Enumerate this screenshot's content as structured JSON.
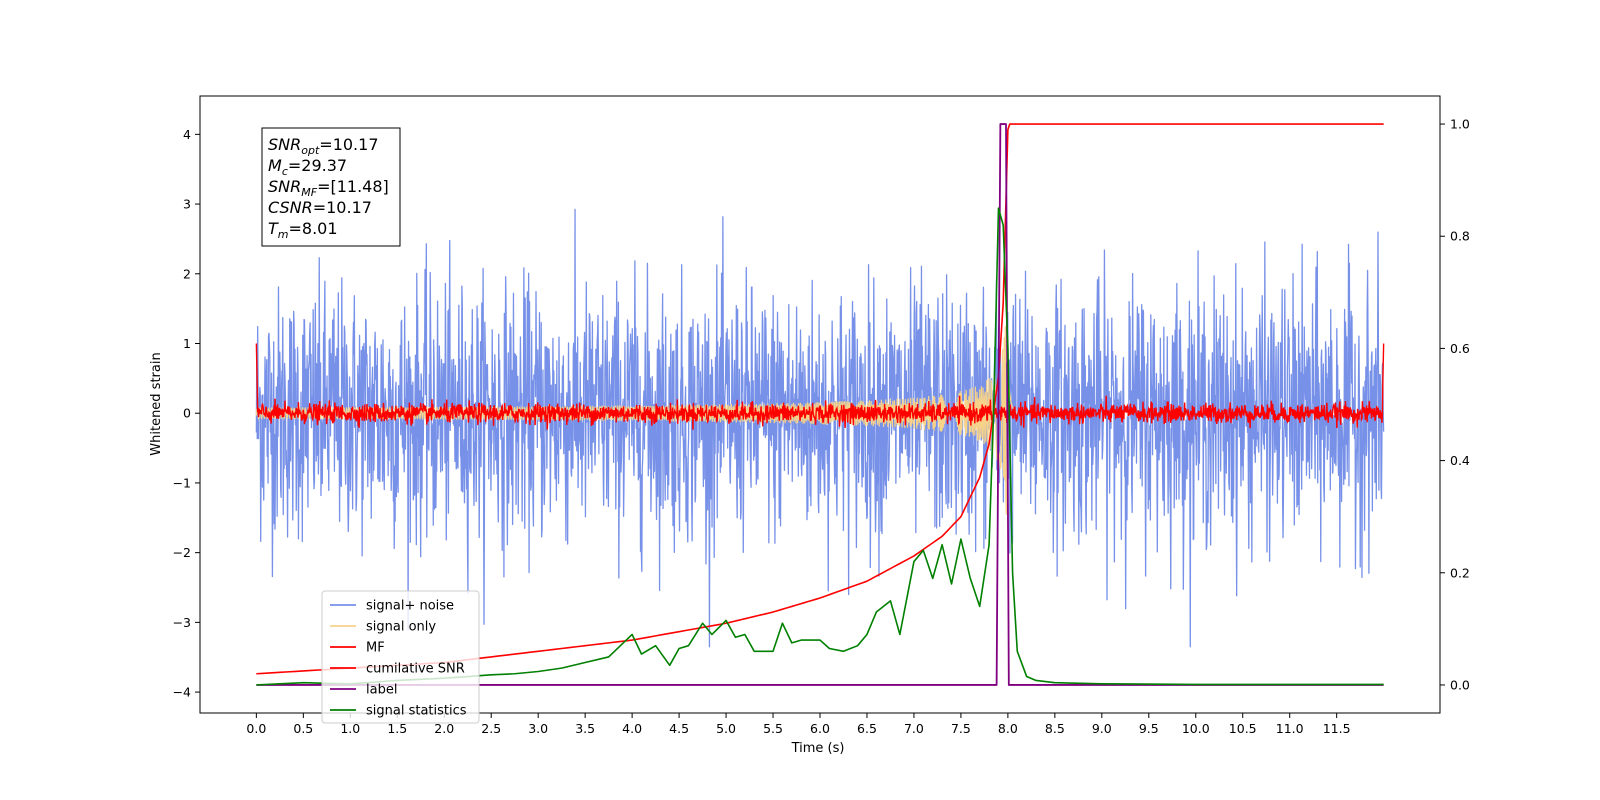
{
  "chart_data": {
    "type": "line",
    "xlabel": "Time (s)",
    "ylabel": "Whitened strain",
    "xlim": [
      -0.6,
      12.6
    ],
    "ylim": [
      -4.3,
      4.55
    ],
    "y2lim": [
      -0.05,
      1.05
    ],
    "xticks": [
      0.0,
      0.5,
      1.0,
      1.5,
      2.0,
      2.5,
      3.0,
      3.5,
      4.0,
      4.5,
      5.0,
      5.5,
      6.0,
      6.5,
      7.0,
      7.5,
      8.0,
      8.5,
      9.0,
      9.5,
      10.0,
      10.5,
      11.0,
      11.5
    ],
    "xtick_labels": [
      "0.0",
      "0.5",
      "1.0",
      "1.5",
      "2.0",
      "2.5",
      "3.0",
      "3.5",
      "4.0",
      "4.5",
      "5.0",
      "5.5",
      "6.0",
      "6.5",
      "7.0",
      "7.5",
      "8.0",
      "8.5",
      "9.0",
      "9.5",
      "10.0",
      "10.5",
      "11.0",
      "11.5"
    ],
    "yticks": [
      -4,
      -3,
      -2,
      -1,
      0,
      1,
      2,
      3,
      4
    ],
    "ytick_labels": [
      "−4",
      "−3",
      "−2",
      "−1",
      "0",
      "1",
      "2",
      "3",
      "4"
    ],
    "y2ticks": [
      0.0,
      0.2,
      0.4,
      0.6,
      0.8,
      1.0
    ],
    "y2tick_labels": [
      "0.0",
      "0.2",
      "0.4",
      "0.6",
      "0.8",
      "1.0"
    ],
    "legend_placement": "lower-left",
    "annotation": [
      {
        "base": "SNR",
        "sub": "opt",
        "value": "=10.17"
      },
      {
        "base": "M",
        "sub": "c",
        "value": "=29.37"
      },
      {
        "base": "SNR",
        "sub": "MF",
        "value": "=[11.48]"
      },
      {
        "base": "CSNR",
        "sub": "",
        "value": "=10.17"
      },
      {
        "base": "T",
        "sub": "m",
        "value": "=8.01"
      }
    ],
    "series": [
      {
        "name": "signal+ noise",
        "color": "#7791e8",
        "axis": "left",
        "kind": "noise",
        "t_range": [
          0.0,
          12.0
        ],
        "std": 0.85,
        "max_abs": 4.17
      },
      {
        "name": "signal only",
        "color": "#f6d28a",
        "axis": "left",
        "kind": "chirp",
        "peak_time": 7.98,
        "peak_amplitude": 2.7
      },
      {
        "name": "MF",
        "color": "#ff0000",
        "axis": "left",
        "kind": "noise",
        "t_range": [
          0.0,
          12.0
        ],
        "std": 0.07,
        "edge_value": 1.0
      },
      {
        "name": "cumilative SNR",
        "color": "#ff0000",
        "axis": "right",
        "x": [
          0.0,
          1.0,
          2.0,
          3.0,
          4.0,
          5.0,
          5.5,
          6.0,
          6.5,
          7.0,
          7.3,
          7.5,
          7.7,
          7.8,
          7.9,
          7.95,
          8.0,
          8.02,
          12.0
        ],
        "y": [
          0.02,
          0.03,
          0.04,
          0.06,
          0.08,
          0.11,
          0.13,
          0.155,
          0.185,
          0.23,
          0.265,
          0.3,
          0.37,
          0.43,
          0.55,
          0.68,
          0.99,
          1.0,
          1.0
        ]
      },
      {
        "name": "label",
        "color": "#800080",
        "axis": "right",
        "x": [
          0.0,
          7.88,
          7.92,
          7.98,
          8.01,
          8.05,
          12.0
        ],
        "y": [
          0.0,
          0.0,
          1.0,
          1.0,
          0.0,
          0.0,
          0.0
        ]
      },
      {
        "name": "signal statistics",
        "color": "#008000",
        "axis": "right",
        "x": [
          0.0,
          0.25,
          0.5,
          0.75,
          1.0,
          1.25,
          1.5,
          1.75,
          2.0,
          2.25,
          2.5,
          2.75,
          3.0,
          3.25,
          3.5,
          3.75,
          4.0,
          4.1,
          4.25,
          4.4,
          4.5,
          4.6,
          4.75,
          4.85,
          5.0,
          5.1,
          5.2,
          5.3,
          5.5,
          5.6,
          5.7,
          5.8,
          6.0,
          6.1,
          6.25,
          6.4,
          6.5,
          6.6,
          6.75,
          6.85,
          7.0,
          7.1,
          7.2,
          7.3,
          7.4,
          7.5,
          7.6,
          7.7,
          7.8,
          7.85,
          7.9,
          7.95,
          8.0,
          8.05,
          8.1,
          8.2,
          8.3,
          8.5,
          9.0,
          10.0,
          12.0
        ],
        "y": [
          0.0,
          0.002,
          0.004,
          0.003,
          0.002,
          0.005,
          0.008,
          0.01,
          0.012,
          0.015,
          0.018,
          0.02,
          0.024,
          0.03,
          0.04,
          0.05,
          0.09,
          0.055,
          0.07,
          0.035,
          0.065,
          0.07,
          0.11,
          0.09,
          0.115,
          0.085,
          0.09,
          0.06,
          0.06,
          0.11,
          0.075,
          0.08,
          0.08,
          0.065,
          0.06,
          0.07,
          0.09,
          0.13,
          0.15,
          0.09,
          0.22,
          0.24,
          0.19,
          0.25,
          0.18,
          0.26,
          0.19,
          0.14,
          0.25,
          0.5,
          0.85,
          0.82,
          0.6,
          0.2,
          0.06,
          0.015,
          0.008,
          0.004,
          0.002,
          0.001,
          0.001
        ]
      }
    ]
  }
}
